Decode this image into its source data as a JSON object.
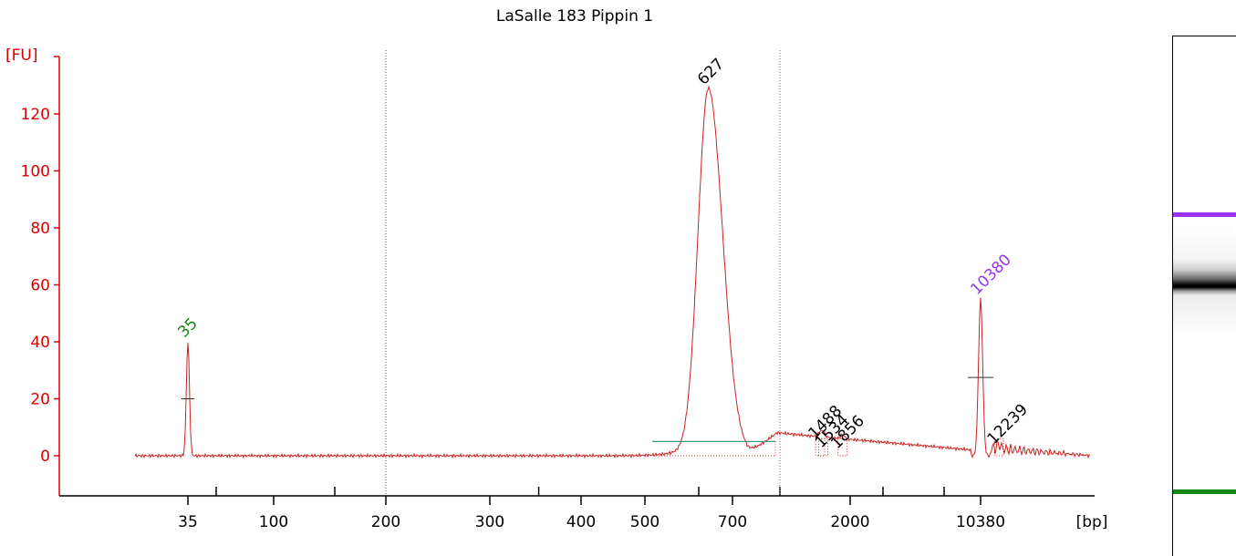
{
  "chart_data": {
    "type": "line",
    "title": "LaSalle 183 Pippin 1",
    "ylabel": "[FU]",
    "xlabel": "[bp]",
    "ylim": [
      -12,
      140
    ],
    "yticks": [
      0,
      20,
      40,
      60,
      80,
      100,
      120
    ],
    "xticks": [
      "35",
      "100",
      "200",
      "300",
      "400",
      "500",
      "700",
      "2000",
      "10380"
    ],
    "grid": false,
    "lower_marker": {
      "label": "35",
      "size_bp": 35,
      "height": 40,
      "color": "#118811"
    },
    "upper_marker": {
      "label": "10380",
      "size_bp": 10380,
      "height": 55,
      "color": "#9933ee"
    },
    "peaks": [
      {
        "label": "627",
        "size_bp": 627,
        "height": 129
      },
      {
        "label": "1488",
        "size_bp": 1488,
        "height": 7
      },
      {
        "label": "1534",
        "size_bp": 1534,
        "height": 7
      },
      {
        "label": "1856",
        "size_bp": 1856,
        "height": 6
      },
      {
        "label": "12239",
        "size_bp": 12239,
        "height": 5
      }
    ],
    "line_color": "#cc2222",
    "axis_color": "#dd0000"
  },
  "gel": {
    "upper_band_color": "#9933ee",
    "lower_band_color": "#118811"
  }
}
